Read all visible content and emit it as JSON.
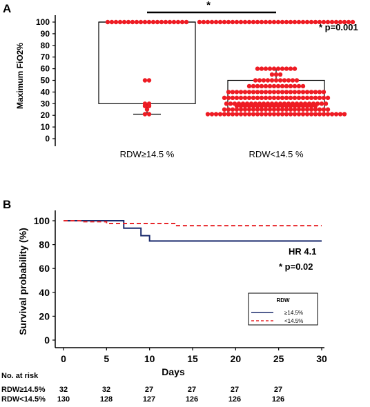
{
  "chart_data": [
    {
      "panel": "A",
      "type": "scatter",
      "ylabel": "Maximum FiO2%",
      "ylim": [
        0,
        100
      ],
      "yticks": [
        "0",
        "10",
        "20",
        "30",
        "40",
        "50",
        "60",
        "70",
        "80",
        "90",
        "100"
      ],
      "categories": [
        "RDW≥14.5 %",
        "RDW<14.5 %"
      ],
      "boxes": [
        {
          "category": "RDW≥14.5 %",
          "whisker_low": 21,
          "q1": 30,
          "median": 100,
          "q3": 100,
          "whisker_high": 100
        },
        {
          "category": "RDW<14.5 %",
          "whisker_low": 21,
          "q1": 21,
          "median": 35,
          "q3": 50,
          "whisker_high": 60
        }
      ],
      "points": [
        {
          "category": "RDW≥14.5 %",
          "values": [
            100,
            100,
            100,
            100,
            100,
            100,
            100,
            100,
            100,
            100,
            100,
            100,
            100,
            100,
            100,
            100,
            100,
            100,
            100,
            100,
            50,
            50,
            30,
            30,
            28,
            28,
            25,
            21,
            21
          ]
        },
        {
          "category": "RDW<14.5 %",
          "values": [
            100,
            100,
            100,
            100,
            100,
            100,
            100,
            100,
            100,
            100,
            100,
            100,
            100,
            100,
            100,
            100,
            100,
            100,
            100,
            100,
            100,
            100,
            100,
            100,
            100,
            100,
            100,
            100,
            100,
            100,
            100,
            100,
            100,
            100,
            100,
            100,
            100,
            100,
            60,
            60,
            60,
            60,
            60,
            60,
            60,
            60,
            60,
            60,
            55,
            55,
            55,
            50,
            50,
            50,
            50,
            50,
            50,
            50,
            50,
            50,
            50,
            50,
            45,
            45,
            45,
            45,
            45,
            45,
            45,
            45,
            45,
            45,
            45,
            45,
            45,
            45,
            40,
            40,
            40,
            40,
            40,
            40,
            40,
            40,
            40,
            40,
            40,
            40,
            40,
            40,
            40,
            40,
            40,
            40,
            40,
            40,
            40,
            40,
            40,
            40,
            35,
            35,
            35,
            35,
            35,
            35,
            35,
            35,
            35,
            35,
            35,
            35,
            35,
            35,
            35,
            35,
            35,
            35,
            35,
            35,
            35,
            35,
            35,
            35,
            35,
            35,
            30,
            30,
            30,
            30,
            30,
            30,
            30,
            30,
            30,
            30,
            30,
            30,
            30,
            30,
            30,
            30,
            30,
            30,
            30,
            30,
            30,
            30,
            30,
            30,
            30,
            28,
            28,
            28,
            28,
            28,
            28,
            28,
            28,
            28,
            28,
            28,
            28,
            28,
            28,
            28,
            28,
            28,
            28,
            28,
            28,
            25,
            25,
            25,
            25,
            25,
            25,
            25,
            25,
            25,
            25,
            25,
            25,
            25,
            25,
            25,
            25,
            25,
            25,
            25,
            25,
            25,
            25,
            25,
            25,
            25,
            25,
            21,
            21,
            21,
            21,
            21,
            21,
            21,
            21,
            21,
            21,
            21,
            21,
            21,
            21,
            21,
            21,
            21,
            21,
            21,
            21,
            21,
            21,
            21,
            21,
            21,
            21,
            21,
            21,
            21,
            21,
            21,
            21,
            21,
            21
          ]
        }
      ],
      "significance_marker": "*",
      "annotation": "* p=0.001"
    },
    {
      "panel": "B",
      "type": "line",
      "xlabel": "Days",
      "ylabel": "Survival probability (%)",
      "xlim": [
        0,
        30
      ],
      "ylim": [
        0,
        100
      ],
      "xticks": [
        "0",
        "5",
        "10",
        "15",
        "20",
        "25",
        "30"
      ],
      "yticks": [
        "0",
        "20",
        "40",
        "60",
        "80",
        "100"
      ],
      "legend_title": "RDW",
      "legend_position": "bottom-right",
      "series": [
        {
          "name": "≥14.5%",
          "color": "#1a2a6c",
          "style": "solid",
          "x": [
            0,
            7,
            7,
            9,
            9,
            10,
            10,
            30
          ],
          "y": [
            100,
            100,
            93.8,
            93.8,
            87.5,
            87.5,
            83,
            83
          ]
        },
        {
          "name": "<14.5%",
          "color": "#e8262a",
          "style": "dashed",
          "x": [
            0,
            2,
            2,
            5,
            5,
            13,
            13,
            30
          ],
          "y": [
            100,
            100,
            99.2,
            99.2,
            97.7,
            97.7,
            95.9,
            95.9
          ]
        }
      ],
      "hr_text": "HR 4.1",
      "annotation": "* p=0.02",
      "risk_table": {
        "title": "No. at risk",
        "rows": [
          {
            "label": "RDW≥14.5%",
            "values": [
              "32",
              "32",
              "27",
              "27",
              "27",
              "27"
            ]
          },
          {
            "label": "RDW<14.5%",
            "values": [
              "130",
              "128",
              "127",
              "126",
              "126",
              "126"
            ]
          }
        ]
      }
    }
  ]
}
